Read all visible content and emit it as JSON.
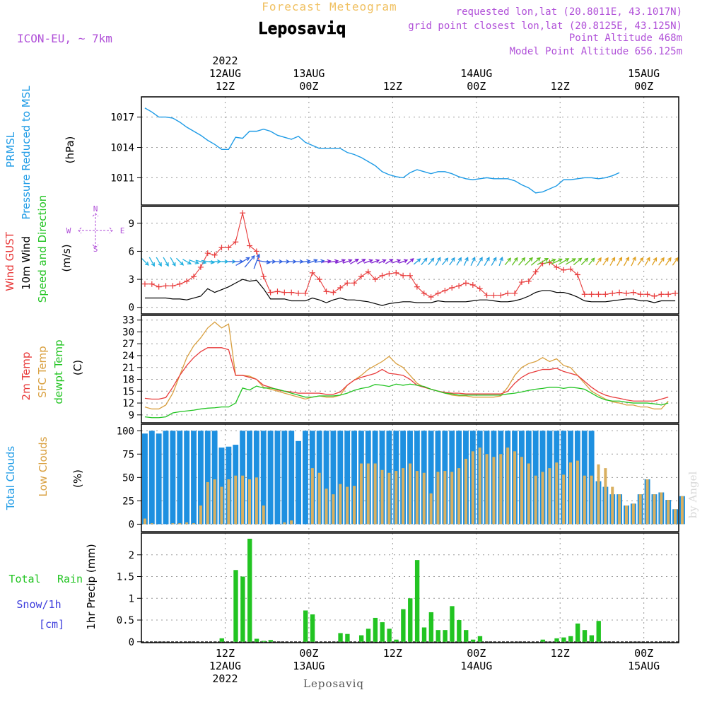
{
  "header": {
    "subtitle": "Forecast Meteogram",
    "location": "Leposaviq",
    "model": "ICON-EU, ~ 7km",
    "requested": "requested lon,lat (20.8011E, 43.1017N)",
    "gridpoint": "grid point closest lon,lat (20.8125E, 43.125N)",
    "point_altitude": "Point Altitude 468m",
    "model_altitude": "Model Point Altitude 656.125m",
    "footer_location": "Leposaviq",
    "watermark": "by Angel"
  },
  "time_axis": {
    "top": [
      {
        "t": 12,
        "lines": [
          "2022",
          "12AUG",
          "12Z"
        ]
      },
      {
        "t": 24,
        "lines": [
          "13AUG",
          "00Z"
        ]
      },
      {
        "t": 36,
        "lines": [
          "12Z"
        ]
      },
      {
        "t": 48,
        "lines": [
          "14AUG",
          "00Z"
        ]
      },
      {
        "t": 60,
        "lines": [
          "12Z"
        ]
      },
      {
        "t": 72,
        "lines": [
          "15AUG",
          "00Z"
        ]
      }
    ],
    "bottom": [
      {
        "t": 12,
        "lines": [
          "12Z",
          "12AUG",
          "2022"
        ]
      },
      {
        "t": 24,
        "lines": [
          "00Z",
          "13AUG"
        ]
      },
      {
        "t": 36,
        "lines": [
          "12Z"
        ]
      },
      {
        "t": 48,
        "lines": [
          "00Z",
          "14AUG"
        ]
      },
      {
        "t": 60,
        "lines": [
          "12Z"
        ]
      },
      {
        "t": 72,
        "lines": [
          "00Z",
          "15AUG"
        ]
      }
    ]
  },
  "labels": {
    "prmsl": "PRMSL",
    "pressure": "Pressure Reduced to MSL",
    "hpa": "(hPa)",
    "wind_gust": "Wind GUST",
    "wind10": "10m Wind",
    "wind_dir": "Speed and Direction",
    "ms": "(m/s)",
    "compass_n": "N",
    "compass_s": "S",
    "compass_w": "W",
    "compass_e": "E",
    "t2m": "2m Temp",
    "sfc": "SFC Temp",
    "dewpt": "dewpt Temp",
    "c": "(C)",
    "total_clouds": "Total Clouds",
    "low_clouds": "Low Clouds",
    "pct": "(%)",
    "total": "Total",
    "rain": "Rain",
    "snow": "Snow/1h",
    "cm": "[cm]",
    "precip": "1hr Precip (mm)"
  },
  "colors": {
    "pressure": "#1e9be6",
    "gust": "#e83c3c",
    "wind": "#000000",
    "t2m": "#e83c3c",
    "sfc": "#d9a040",
    "dewpt": "#22c422",
    "total_clouds": "#1e90e0",
    "low_clouds": "#d9b060",
    "rain": "#22c422",
    "snow": "#3c3cdc",
    "purple": "#b050d8",
    "gold": "#f0c060"
  },
  "chart_data": [
    {
      "type": "line",
      "title": "PRMSL Pressure Reduced to MSL",
      "ylabel": "(hPa)",
      "ylim": [
        1008.3,
        1019.0
      ],
      "yticks": [
        1011,
        1014,
        1017
      ],
      "x_start": 0,
      "x_end": 77,
      "series": [
        {
          "name": "PRMSL",
          "values": [
            1017.9,
            1017.5,
            1017.0,
            1017.0,
            1016.9,
            1016.5,
            1016.0,
            1015.6,
            1015.2,
            1014.7,
            1014.3,
            1013.8,
            1013.8,
            1015.0,
            1014.9,
            1015.6,
            1015.6,
            1015.8,
            1015.6,
            1015.2,
            1015.0,
            1014.8,
            1015.1,
            1014.5,
            1014.2,
            1013.9,
            1013.9,
            1013.9,
            1013.9,
            1013.5,
            1013.3,
            1013.0,
            1012.6,
            1012.2,
            1011.6,
            1011.3,
            1011.1,
            1011.0,
            1011.5,
            1011.8,
            1011.6,
            1011.4,
            1011.6,
            1011.6,
            1011.4,
            1011.1,
            1010.9,
            1010.8,
            1010.9,
            1011.0,
            1010.9,
            1010.9,
            1010.9,
            1010.7,
            1010.3,
            1010.0,
            1009.5,
            1009.6,
            1009.9,
            1010.2,
            1010.8,
            1010.8,
            1010.9,
            1011.0,
            1011.0,
            1010.9,
            1011.0,
            1011.2,
            1011.5
          ]
        }
      ]
    },
    {
      "type": "line",
      "title": "Wind GUST / 10m Wind Speed and Direction",
      "ylabel": "(m/s)",
      "ylim": [
        -0.7,
        10.8
      ],
      "yticks": [
        0,
        3,
        6,
        9
      ],
      "series": [
        {
          "name": "Wind GUST",
          "values": [
            2.5,
            2.5,
            2.2,
            2.3,
            2.3,
            2.5,
            2.8,
            3.3,
            4.3,
            5.8,
            5.6,
            6.4,
            6.4,
            7.0,
            10.1,
            6.6,
            6.0,
            3.3,
            1.6,
            1.7,
            1.6,
            1.6,
            1.5,
            1.5,
            3.7,
            3.0,
            1.7,
            1.6,
            2.1,
            2.6,
            2.6,
            3.3,
            3.8,
            3.0,
            3.4,
            3.6,
            3.7,
            3.4,
            3.4,
            2.2,
            1.5,
            1.1,
            1.5,
            1.8,
            2.1,
            2.3,
            2.6,
            2.4,
            2.0,
            1.3,
            1.3,
            1.3,
            1.5,
            1.5,
            2.7,
            2.8,
            3.8,
            4.7,
            4.8,
            4.3,
            4.0,
            4.1,
            3.5,
            1.4,
            1.4,
            1.4,
            1.4,
            1.5,
            1.6,
            1.5,
            1.6,
            1.4,
            1.4,
            1.2,
            1.4,
            1.4,
            1.5
          ]
        },
        {
          "name": "10m Wind",
          "values": [
            1.0,
            1.0,
            1.0,
            1.0,
            0.9,
            0.9,
            0.8,
            1.0,
            1.2,
            2.0,
            1.6,
            1.9,
            2.2,
            2.6,
            3.0,
            2.8,
            2.9,
            2.0,
            0.9,
            0.9,
            0.9,
            0.7,
            0.7,
            0.7,
            1.0,
            0.8,
            0.5,
            0.8,
            1.0,
            0.8,
            0.8,
            0.7,
            0.6,
            0.4,
            0.2,
            0.4,
            0.5,
            0.6,
            0.6,
            0.5,
            0.5,
            0.5,
            0.7,
            0.6,
            0.6,
            0.6,
            0.6,
            0.7,
            0.8,
            0.8,
            0.7,
            0.6,
            0.6,
            0.7,
            0.9,
            1.2,
            1.6,
            1.8,
            1.8,
            1.6,
            1.6,
            1.4,
            1.1,
            0.7,
            0.6,
            0.6,
            0.6,
            0.7,
            0.8,
            0.9,
            0.9,
            0.7,
            0.7,
            0.5,
            0.7,
            0.7,
            0.7
          ]
        }
      ]
    },
    {
      "type": "line",
      "title": "2m Temp / SFC Temp / dewpt Temp",
      "ylabel": "(C)",
      "ylim": [
        7.0,
        34.2
      ],
      "yticks": [
        9,
        12,
        15,
        18,
        21,
        24,
        27,
        30,
        33
      ],
      "series": [
        {
          "name": "2m Temp",
          "values": [
            13.2,
            13.0,
            13.0,
            13.4,
            16.0,
            19.0,
            21.5,
            23.5,
            25.0,
            26.0,
            26.0,
            26.0,
            25.5,
            19.0,
            19.0,
            18.5,
            18.0,
            16.5,
            16.0,
            15.3,
            15.0,
            14.8,
            14.5,
            14.5,
            14.5,
            14.5,
            14.2,
            14.2,
            14.8,
            16.5,
            17.8,
            18.5,
            19.0,
            19.5,
            20.5,
            19.5,
            19.3,
            19.0,
            18.0,
            16.5,
            16.0,
            15.5,
            15.0,
            14.7,
            14.5,
            14.5,
            14.3,
            14.3,
            14.3,
            14.3,
            14.3,
            14.3,
            15.0,
            17.0,
            18.5,
            19.5,
            20.0,
            20.5,
            20.5,
            20.8,
            20.0,
            19.5,
            19.0,
            17.5,
            16.0,
            14.8,
            14.0,
            13.5,
            13.2,
            12.8,
            12.5,
            12.5,
            12.5,
            12.5,
            13.0,
            13.5
          ]
        },
        {
          "name": "SFC Temp",
          "values": [
            11.0,
            10.5,
            10.5,
            11.5,
            14.5,
            19.0,
            23.5,
            26.5,
            28.5,
            31.0,
            32.5,
            31.0,
            32.0,
            19.0,
            19.0,
            18.8,
            18.0,
            16.0,
            15.5,
            15.0,
            14.5,
            14.0,
            13.5,
            13.0,
            13.5,
            13.8,
            13.5,
            13.5,
            14.0,
            16.5,
            17.8,
            19.0,
            20.5,
            21.5,
            22.5,
            23.8,
            22.0,
            21.0,
            19.0,
            17.0,
            16.0,
            15.5,
            15.0,
            14.5,
            14.0,
            13.8,
            13.8,
            13.5,
            13.5,
            13.5,
            13.5,
            13.8,
            16.0,
            19.0,
            21.0,
            22.0,
            22.5,
            23.5,
            22.5,
            23.2,
            21.5,
            21.0,
            19.0,
            17.0,
            15.0,
            14.0,
            13.0,
            12.3,
            12.0,
            11.5,
            11.5,
            11.0,
            11.0,
            10.5,
            10.5,
            12.5
          ]
        },
        {
          "name": "dewpt Temp",
          "values": [
            8.5,
            8.3,
            8.3,
            8.5,
            9.5,
            9.8,
            10.0,
            10.2,
            10.5,
            10.7,
            10.8,
            11.0,
            11.0,
            12.0,
            15.8,
            15.3,
            16.3,
            15.8,
            15.8,
            15.5,
            15.0,
            14.5,
            14.0,
            13.5,
            13.5,
            13.8,
            13.8,
            13.8,
            14.0,
            14.5,
            15.2,
            15.7,
            16.0,
            16.7,
            16.5,
            16.2,
            16.8,
            16.5,
            16.8,
            16.5,
            16.2,
            15.5,
            15.0,
            14.5,
            14.3,
            14.0,
            14.0,
            14.0,
            14.0,
            14.0,
            14.0,
            14.0,
            14.3,
            14.5,
            14.8,
            15.2,
            15.5,
            15.7,
            16.0,
            16.0,
            15.7,
            16.0,
            15.8,
            15.5,
            14.5,
            13.5,
            12.8,
            12.5,
            12.5,
            12.2,
            12.0,
            12.0,
            12.0,
            11.8,
            11.5,
            12.0
          ]
        }
      ]
    },
    {
      "type": "bar",
      "title": "Total Clouds / Low Clouds",
      "ylabel": "(%)",
      "ylim": [
        -8.0,
        107.0
      ],
      "yticks": [
        0,
        25,
        50,
        75,
        100
      ],
      "series": [
        {
          "name": "Total Clouds",
          "values": [
            97,
            100,
            97,
            100,
            100,
            100,
            100,
            100,
            100,
            100,
            100,
            82,
            83,
            85,
            100,
            100,
            100,
            100,
            100,
            100,
            100,
            100,
            89,
            100,
            100,
            100,
            100,
            100,
            100,
            100,
            100,
            100,
            100,
            100,
            100,
            100,
            100,
            100,
            100,
            100,
            100,
            100,
            100,
            100,
            100,
            100,
            100,
            100,
            100,
            100,
            100,
            100,
            100,
            100,
            100,
            100,
            100,
            100,
            100,
            100,
            100,
            100,
            100,
            100,
            100,
            46,
            40,
            32,
            32,
            20,
            22,
            32,
            48,
            32,
            34,
            26,
            16,
            30
          ]
        },
        {
          "name": "Low Clouds",
          "values": [
            6,
            1,
            0,
            0,
            1,
            1,
            2,
            1,
            20,
            45,
            48,
            40,
            48,
            52,
            52,
            48,
            50,
            20,
            0,
            0,
            2,
            4,
            0,
            0,
            60,
            55,
            38,
            32,
            43,
            40,
            41,
            65,
            65,
            65,
            58,
            55,
            57,
            60,
            65,
            57,
            55,
            33,
            56,
            57,
            56,
            60,
            70,
            78,
            82,
            75,
            72,
            75,
            82,
            78,
            72,
            65,
            52,
            56,
            60,
            66,
            53,
            66,
            68,
            52,
            52,
            64,
            60,
            40,
            32,
            20,
            22,
            32,
            48,
            32,
            34,
            26,
            16,
            30
          ]
        }
      ]
    },
    {
      "type": "bar",
      "title": "Total Rain / Snow/1h [cm]",
      "ylabel": "1hr Precip (mm)",
      "ylim": [
        -0.02,
        2.5
      ],
      "yticks": [
        0,
        0.5,
        1,
        1.5,
        2
      ],
      "yticklabels": [
        "0",
        "0.5",
        "1",
        "1.5",
        "2"
      ],
      "series": [
        {
          "name": "Total Rain",
          "values": [
            0,
            0,
            0,
            0,
            0,
            0,
            0,
            0,
            0,
            0,
            0,
            0.08,
            0,
            1.65,
            1.5,
            2.37,
            0.07,
            0.02,
            0.04,
            0,
            0,
            0,
            0,
            0.72,
            0.63,
            0,
            0,
            0,
            0.2,
            0.18,
            0,
            0.15,
            0.3,
            0.55,
            0.45,
            0.3,
            0.05,
            0.75,
            1.0,
            1.88,
            0.33,
            0.68,
            0.27,
            0.27,
            0.82,
            0.5,
            0.27,
            0.05,
            0.13,
            0,
            0,
            0,
            0,
            0,
            0,
            0,
            0,
            0.05,
            0,
            0.08,
            0.1,
            0.13,
            0.42,
            0.27,
            0.15,
            0.48,
            0,
            0,
            0,
            0,
            0,
            0,
            0,
            0,
            0,
            0,
            0
          ]
        }
      ]
    }
  ],
  "wind_barbs": {
    "direction_deg": [
      315,
      330,
      330,
      330,
      330,
      315,
      300,
      290,
      285,
      280,
      270,
      270,
      270,
      270,
      240,
      220,
      200,
      280,
      270,
      270,
      270,
      270,
      270,
      260,
      250,
      260,
      260,
      260,
      250,
      250,
      240,
      240,
      250,
      250,
      245,
      240,
      250,
      250,
      230,
      230,
      220,
      220,
      210,
      220,
      215,
      210,
      205,
      205,
      210,
      210,
      210,
      200,
      220,
      215,
      220,
      225,
      230,
      240,
      250,
      245,
      240,
      240,
      230,
      225,
      220,
      215,
      215,
      210,
      210,
      210,
      205,
      215,
      210,
      210,
      215,
      215,
      215
    ],
    "speed": [
      1.0,
      1.0,
      1.0,
      1.0,
      0.9,
      0.9,
      0.8,
      1.0,
      1.2,
      2.0,
      1.6,
      1.9,
      2.2,
      2.6,
      3.0,
      2.8,
      2.9,
      2.0,
      0.9,
      0.9,
      0.9,
      0.7,
      0.7,
      0.7,
      1.0,
      0.8,
      0.5,
      0.8,
      1.0,
      0.8,
      0.8,
      0.7,
      0.6,
      0.4,
      0.2,
      0.4,
      0.5,
      0.6,
      0.6,
      0.5,
      0.5,
      0.5,
      0.7,
      0.6,
      0.6,
      0.6,
      0.6,
      0.7,
      0.8,
      0.8,
      0.7,
      0.6,
      0.6,
      0.7,
      0.9,
      1.2,
      1.6,
      1.8,
      1.8,
      1.6,
      1.6,
      1.4,
      1.1,
      0.7,
      0.6,
      0.6,
      0.6,
      0.7,
      0.8,
      0.9,
      0.9,
      0.7,
      0.7,
      0.5,
      0.7,
      0.7,
      0.7
    ],
    "color_stops": [
      "#20b0e0",
      "#3060e0",
      "#8020d0",
      "#20a0e0",
      "#60c020",
      "#e0a020"
    ]
  }
}
